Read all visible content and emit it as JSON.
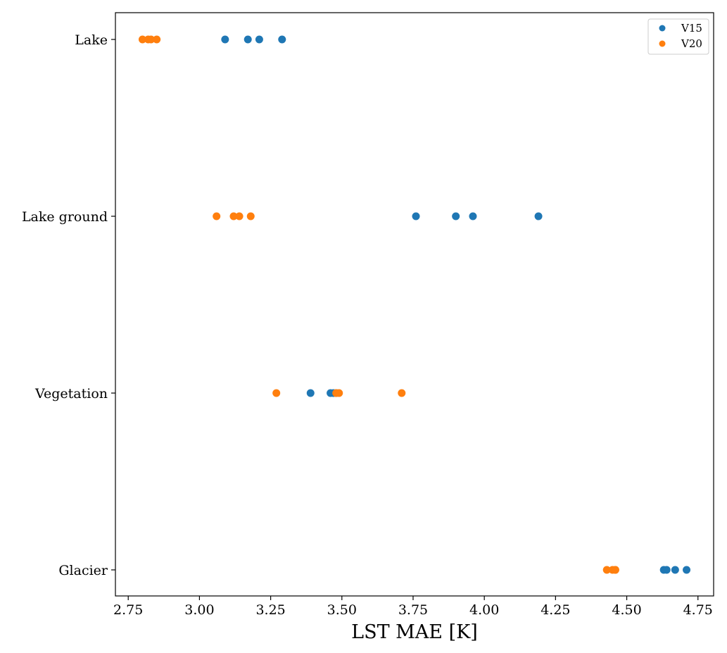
{
  "chart_data": {
    "type": "scatter",
    "title": "",
    "xlabel": "LST MAE [K]",
    "ylabel": "",
    "xlim": [
      2.705,
      4.805
    ],
    "x_ticks": [
      2.75,
      3.0,
      3.25,
      3.5,
      3.75,
      4.0,
      4.25,
      4.5,
      4.75
    ],
    "x_tick_labels": [
      "2.75",
      "3.00",
      "3.25",
      "3.50",
      "3.75",
      "4.00",
      "4.25",
      "4.50",
      "4.75"
    ],
    "categories": [
      "Lake",
      "Lake ground",
      "Vegetation",
      "Glacier"
    ],
    "grid": false,
    "legend_position": "top-right",
    "series": [
      {
        "name": "V15",
        "color": "#1f77b4",
        "points": [
          {
            "category": "Lake",
            "x": 3.09
          },
          {
            "category": "Lake",
            "x": 3.17
          },
          {
            "category": "Lake",
            "x": 3.21
          },
          {
            "category": "Lake",
            "x": 3.29
          },
          {
            "category": "Lake ground",
            "x": 3.76
          },
          {
            "category": "Lake ground",
            "x": 3.9
          },
          {
            "category": "Lake ground",
            "x": 3.96
          },
          {
            "category": "Lake ground",
            "x": 4.19
          },
          {
            "category": "Vegetation",
            "x": 3.39
          },
          {
            "category": "Vegetation",
            "x": 3.46
          },
          {
            "category": "Vegetation",
            "x": 3.47
          },
          {
            "category": "Vegetation",
            "x": 3.48
          },
          {
            "category": "Glacier",
            "x": 4.63
          },
          {
            "category": "Glacier",
            "x": 4.64
          },
          {
            "category": "Glacier",
            "x": 4.67
          },
          {
            "category": "Glacier",
            "x": 4.71
          }
        ]
      },
      {
        "name": "V20",
        "color": "#ff7f0e",
        "points": [
          {
            "category": "Lake",
            "x": 2.8
          },
          {
            "category": "Lake",
            "x": 2.82
          },
          {
            "category": "Lake",
            "x": 2.83
          },
          {
            "category": "Lake",
            "x": 2.85
          },
          {
            "category": "Lake ground",
            "x": 3.06
          },
          {
            "category": "Lake ground",
            "x": 3.12
          },
          {
            "category": "Lake ground",
            "x": 3.14
          },
          {
            "category": "Lake ground",
            "x": 3.18
          },
          {
            "category": "Vegetation",
            "x": 3.27
          },
          {
            "category": "Vegetation",
            "x": 3.48
          },
          {
            "category": "Vegetation",
            "x": 3.49
          },
          {
            "category": "Vegetation",
            "x": 3.71
          },
          {
            "category": "Glacier",
            "x": 4.43
          },
          {
            "category": "Glacier",
            "x": 4.45
          },
          {
            "category": "Glacier",
            "x": 4.46
          },
          {
            "category": "Glacier",
            "x": 4.46
          }
        ]
      }
    ]
  }
}
